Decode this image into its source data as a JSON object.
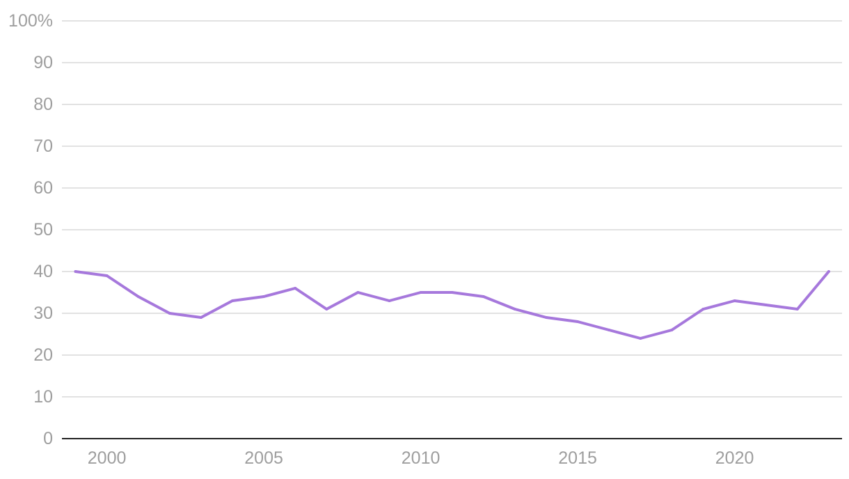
{
  "chart_data": {
    "type": "line",
    "title": "",
    "xlabel": "",
    "ylabel": "",
    "xlim": [
      1999,
      2023
    ],
    "ylim": [
      0,
      100
    ],
    "grid": true,
    "y_ticks": [
      0,
      10,
      20,
      30,
      40,
      50,
      60,
      70,
      80,
      90,
      100
    ],
    "y_tick_labels": [
      "0",
      "10",
      "20",
      "30",
      "40",
      "50",
      "60",
      "70",
      "80",
      "90",
      "100%"
    ],
    "x_ticks": [
      2000,
      2005,
      2010,
      2015,
      2020
    ],
    "x_tick_labels": [
      "2000",
      "2005",
      "2010",
      "2015",
      "2020"
    ],
    "x": [
      1999,
      2000,
      2001,
      2002,
      2003,
      2004,
      2005,
      2006,
      2007,
      2008,
      2009,
      2010,
      2011,
      2012,
      2013,
      2014,
      2015,
      2016,
      2017,
      2018,
      2019,
      2020,
      2021,
      2022,
      2023
    ],
    "series": [
      {
        "color": "#a678dc",
        "values": [
          40,
          39,
          34,
          30,
          29,
          33,
          34,
          36,
          31,
          35,
          33,
          35,
          35,
          34,
          31,
          29,
          28,
          26,
          24,
          26,
          31,
          33,
          32,
          31,
          40
        ]
      }
    ]
  }
}
